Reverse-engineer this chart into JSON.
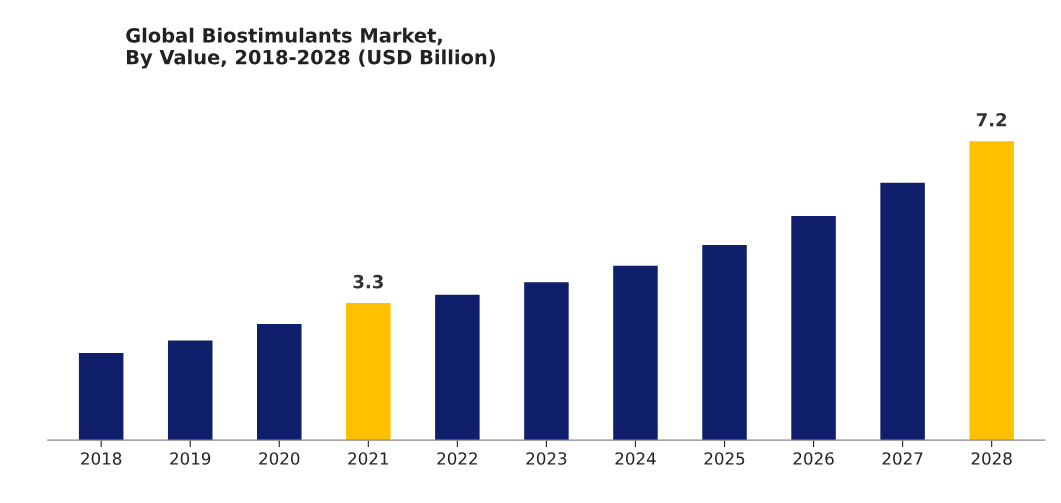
{
  "chart_data": {
    "type": "bar",
    "title": "Global Biostimulants Market,\nBy Value, 2018-2028 (USD Billion)",
    "categories": [
      "2018",
      "2019",
      "2020",
      "2021",
      "2022",
      "2023",
      "2024",
      "2025",
      "2026",
      "2027",
      "2028"
    ],
    "values": [
      2.1,
      2.4,
      2.8,
      3.3,
      3.5,
      3.8,
      4.2,
      4.7,
      5.4,
      6.2,
      7.2
    ],
    "colors": [
      "#0f1f6b",
      "#0f1f6b",
      "#0f1f6b",
      "#ffc000",
      "#0f1f6b",
      "#0f1f6b",
      "#0f1f6b",
      "#0f1f6b",
      "#0f1f6b",
      "#0f1f6b",
      "#ffc000"
    ],
    "value_labels": [
      null,
      null,
      null,
      "3.3",
      null,
      null,
      null,
      null,
      null,
      null,
      "7.2"
    ],
    "grid": false,
    "legend": false
  }
}
